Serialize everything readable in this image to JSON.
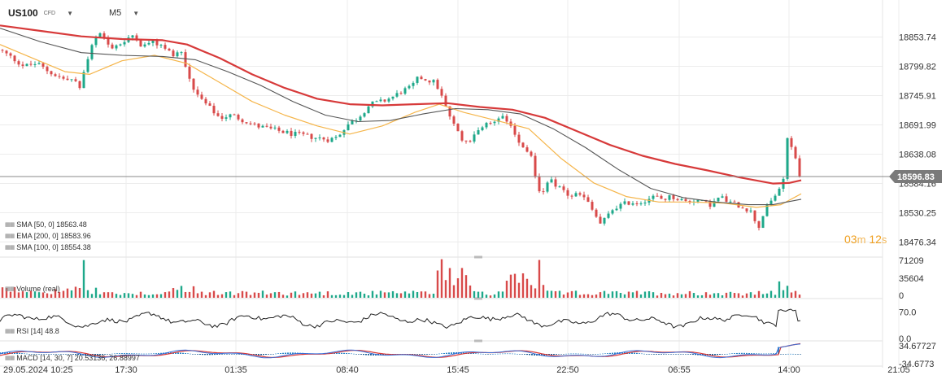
{
  "header": {
    "symbol": "US100",
    "badge": "CFD",
    "timeframe": "M5"
  },
  "price_chart": {
    "current_price": "18596.83",
    "timer": {
      "minutes": "03",
      "minutes_unit": "m",
      "seconds": "12",
      "seconds_unit": "s"
    },
    "colors": {
      "up": "#1ea88a",
      "down": "#d84a4a",
      "sma50": "#f5b54a",
      "ema200": "#d73a3a",
      "sma100": "#555555",
      "price_line": "#888888"
    }
  },
  "indicators": {
    "sma50": "SMA [50, 0]  18563.48",
    "ema200": "EMA [200, 0]  18583.96",
    "sma100": "SMA [100, 0]  18554.38",
    "volume": "Volume  (real)",
    "rsi": "RSI [14]  48.8",
    "macd": "MACD [14, 30, 7]  20.53136,  26.88997"
  },
  "chart_data": {
    "type": "candlestick",
    "x_tick_labels": [
      "29.05.2024  10:25",
      "17:30",
      "01:35",
      "08:40",
      "15:45",
      "22:50",
      "06:55",
      "14:00",
      "21:05"
    ],
    "y_tick_labels": [
      "18853.74",
      "18799.82",
      "18745.91",
      "18691.99",
      "18638.08",
      "18584.16",
      "18530.25",
      "18476.34"
    ],
    "ylim": [
      18450,
      18880
    ],
    "current_price": 18596.83,
    "price_path": [
      [
        0,
        18830
      ],
      [
        15,
        18815
      ],
      [
        30,
        18800
      ],
      [
        45,
        18805
      ],
      [
        60,
        18790
      ],
      [
        80,
        18775
      ],
      [
        90,
        18775
      ],
      [
        98,
        18760
      ],
      [
        105,
        18800
      ],
      [
        115,
        18845
      ],
      [
        125,
        18860
      ],
      [
        135,
        18835
      ],
      [
        145,
        18840
      ],
      [
        155,
        18845
      ],
      [
        165,
        18860
      ],
      [
        175,
        18835
      ],
      [
        185,
        18845
      ],
      [
        195,
        18840
      ],
      [
        205,
        18830
      ],
      [
        215,
        18820
      ],
      [
        222,
        18830
      ],
      [
        230,
        18790
      ],
      [
        240,
        18750
      ],
      [
        250,
        18735
      ],
      [
        260,
        18720
      ],
      [
        270,
        18705
      ],
      [
        285,
        18710
      ],
      [
        300,
        18700
      ],
      [
        315,
        18690
      ],
      [
        330,
        18685
      ],
      [
        345,
        18680
      ],
      [
        360,
        18675
      ],
      [
        375,
        18672
      ],
      [
        390,
        18668
      ],
      [
        405,
        18665
      ],
      [
        415,
        18670
      ],
      [
        425,
        18690
      ],
      [
        440,
        18705
      ],
      [
        455,
        18730
      ],
      [
        470,
        18735
      ],
      [
        485,
        18745
      ],
      [
        495,
        18755
      ],
      [
        505,
        18760
      ],
      [
        515,
        18780
      ],
      [
        525,
        18775
      ],
      [
        535,
        18770
      ],
      [
        545,
        18740
      ],
      [
        555,
        18700
      ],
      [
        565,
        18670
      ],
      [
        575,
        18660
      ],
      [
        585,
        18680
      ],
      [
        595,
        18690
      ],
      [
        605,
        18695
      ],
      [
        615,
        18710
      ],
      [
        625,
        18700
      ],
      [
        635,
        18670
      ],
      [
        645,
        18650
      ],
      [
        655,
        18630
      ],
      [
        660,
        18580
      ],
      [
        665,
        18560
      ],
      [
        675,
        18590
      ],
      [
        690,
        18575
      ],
      [
        700,
        18560
      ],
      [
        710,
        18565
      ],
      [
        720,
        18555
      ],
      [
        730,
        18530
      ],
      [
        738,
        18510
      ],
      [
        745,
        18520
      ],
      [
        755,
        18540
      ],
      [
        765,
        18545
      ],
      [
        775,
        18550
      ],
      [
        785,
        18548
      ],
      [
        795,
        18555
      ],
      [
        805,
        18560
      ],
      [
        815,
        18555
      ],
      [
        825,
        18560
      ],
      [
        835,
        18555
      ],
      [
        845,
        18550
      ],
      [
        855,
        18555
      ],
      [
        865,
        18548
      ],
      [
        875,
        18545
      ],
      [
        885,
        18560
      ],
      [
        895,
        18550
      ],
      [
        905,
        18545
      ],
      [
        915,
        18540
      ],
      [
        925,
        18530
      ],
      [
        932,
        18500
      ],
      [
        940,
        18535
      ],
      [
        950,
        18555
      ],
      [
        958,
        18575
      ],
      [
        963,
        18595
      ],
      [
        968,
        18665
      ],
      [
        975,
        18650
      ],
      [
        980,
        18625
      ],
      [
        985,
        18596.83
      ]
    ],
    "series": [
      {
        "name": "SMA [50, 0]",
        "path": [
          [
            0,
            18840
          ],
          [
            40,
            18815
          ],
          [
            80,
            18790
          ],
          [
            110,
            18785
          ],
          [
            150,
            18810
          ],
          [
            190,
            18820
          ],
          [
            230,
            18805
          ],
          [
            270,
            18770
          ],
          [
            310,
            18735
          ],
          [
            350,
            18710
          ],
          [
            390,
            18690
          ],
          [
            430,
            18675
          ],
          [
            470,
            18690
          ],
          [
            510,
            18715
          ],
          [
            540,
            18730
          ],
          [
            570,
            18715
          ],
          [
            610,
            18700
          ],
          [
            650,
            18685
          ],
          [
            690,
            18630
          ],
          [
            730,
            18585
          ],
          [
            770,
            18560
          ],
          [
            810,
            18550
          ],
          [
            850,
            18550
          ],
          [
            890,
            18548
          ],
          [
            930,
            18540
          ],
          [
            960,
            18545
          ],
          [
            985,
            18565
          ]
        ]
      },
      {
        "name": "EMA [200, 0]",
        "path": [
          [
            0,
            18875
          ],
          [
            50,
            18865
          ],
          [
            100,
            18855
          ],
          [
            150,
            18850
          ],
          [
            200,
            18848
          ],
          [
            230,
            18840
          ],
          [
            270,
            18815
          ],
          [
            310,
            18785
          ],
          [
            350,
            18760
          ],
          [
            390,
            18740
          ],
          [
            430,
            18730
          ],
          [
            470,
            18728
          ],
          [
            510,
            18730
          ],
          [
            550,
            18732
          ],
          [
            590,
            18725
          ],
          [
            630,
            18720
          ],
          [
            670,
            18705
          ],
          [
            710,
            18680
          ],
          [
            750,
            18655
          ],
          [
            790,
            18635
          ],
          [
            830,
            18620
          ],
          [
            870,
            18608
          ],
          [
            910,
            18595
          ],
          [
            950,
            18584
          ],
          [
            970,
            18585
          ],
          [
            985,
            18590
          ]
        ]
      },
      {
        "name": "SMA [100, 0]",
        "path": [
          [
            0,
            18870
          ],
          [
            50,
            18845
          ],
          [
            100,
            18825
          ],
          [
            150,
            18820
          ],
          [
            200,
            18818
          ],
          [
            240,
            18812
          ],
          [
            280,
            18790
          ],
          [
            320,
            18765
          ],
          [
            360,
            18735
          ],
          [
            400,
            18710
          ],
          [
            440,
            18698
          ],
          [
            480,
            18700
          ],
          [
            520,
            18712
          ],
          [
            560,
            18722
          ],
          [
            600,
            18720
          ],
          [
            640,
            18712
          ],
          [
            680,
            18685
          ],
          [
            720,
            18650
          ],
          [
            760,
            18610
          ],
          [
            800,
            18575
          ],
          [
            840,
            18558
          ],
          [
            880,
            18550
          ],
          [
            920,
            18545
          ],
          [
            950,
            18545
          ],
          [
            985,
            18555
          ]
        ]
      }
    ],
    "volume": {
      "y_tick_labels": [
        "71209",
        "35604",
        "0"
      ],
      "ylim": [
        0,
        71209
      ]
    },
    "rsi": {
      "y_tick_labels": [
        "70.0",
        "0.0"
      ],
      "ylim": [
        0,
        100
      ],
      "last": 48.8
    },
    "macd": {
      "y_tick_labels": [
        "34.67727",
        "-34.6773"
      ],
      "ylim": [
        -34.6773,
        34.67727
      ],
      "macd": 20.53136,
      "signal": 26.88997
    }
  }
}
